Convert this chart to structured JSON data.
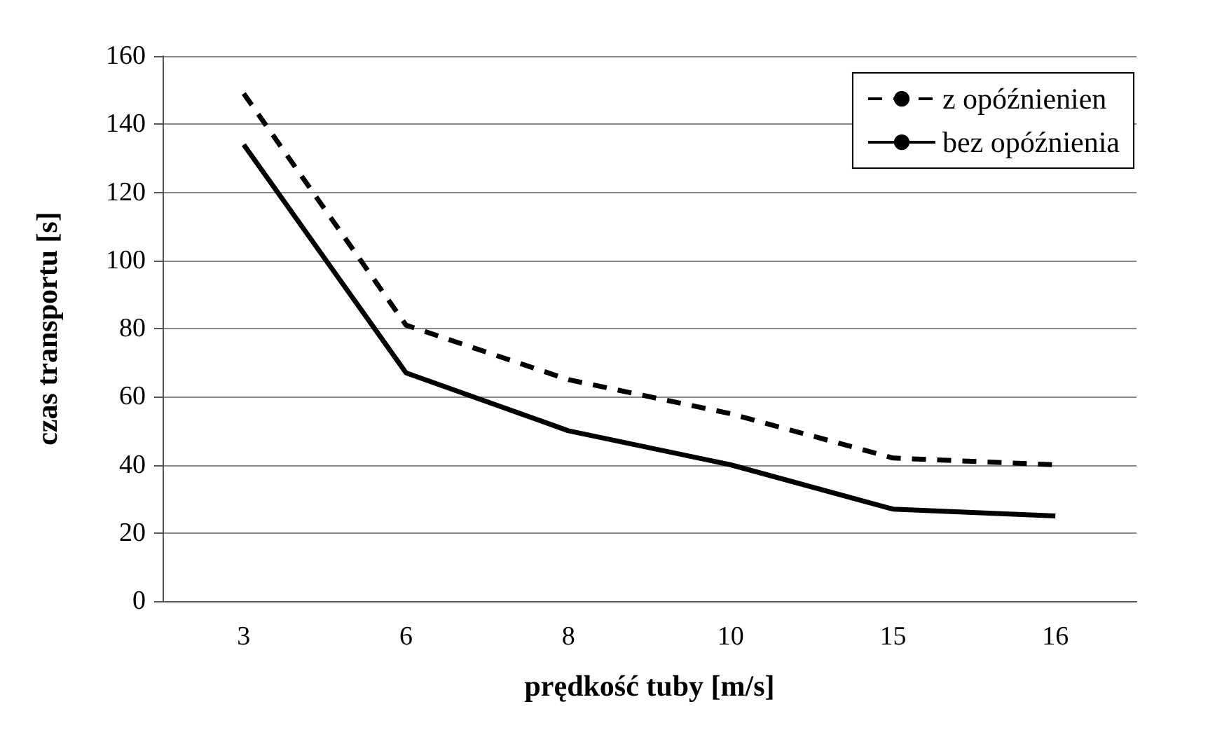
{
  "chart_data": {
    "type": "line",
    "xlabel": "prędkość tuby [m/s]",
    "ylabel": "czas transportu [s]",
    "categories": [
      "3",
      "6",
      "8",
      "10",
      "15",
      "16"
    ],
    "series": [
      {
        "name": "z opóźnienien",
        "color": "#000000",
        "line_style": "dashed",
        "values": [
          149,
          81,
          65,
          55,
          42,
          40
        ]
      },
      {
        "name": "bez opóźnienia",
        "color": "#000000",
        "line_style": "solid",
        "values": [
          134,
          67,
          50,
          40,
          27,
          25
        ]
      }
    ],
    "ylim": [
      0,
      160
    ],
    "yticks": [
      0,
      20,
      40,
      60,
      80,
      100,
      120,
      140,
      160
    ],
    "grid": "y",
    "legend": "top right",
    "marker": "none"
  }
}
